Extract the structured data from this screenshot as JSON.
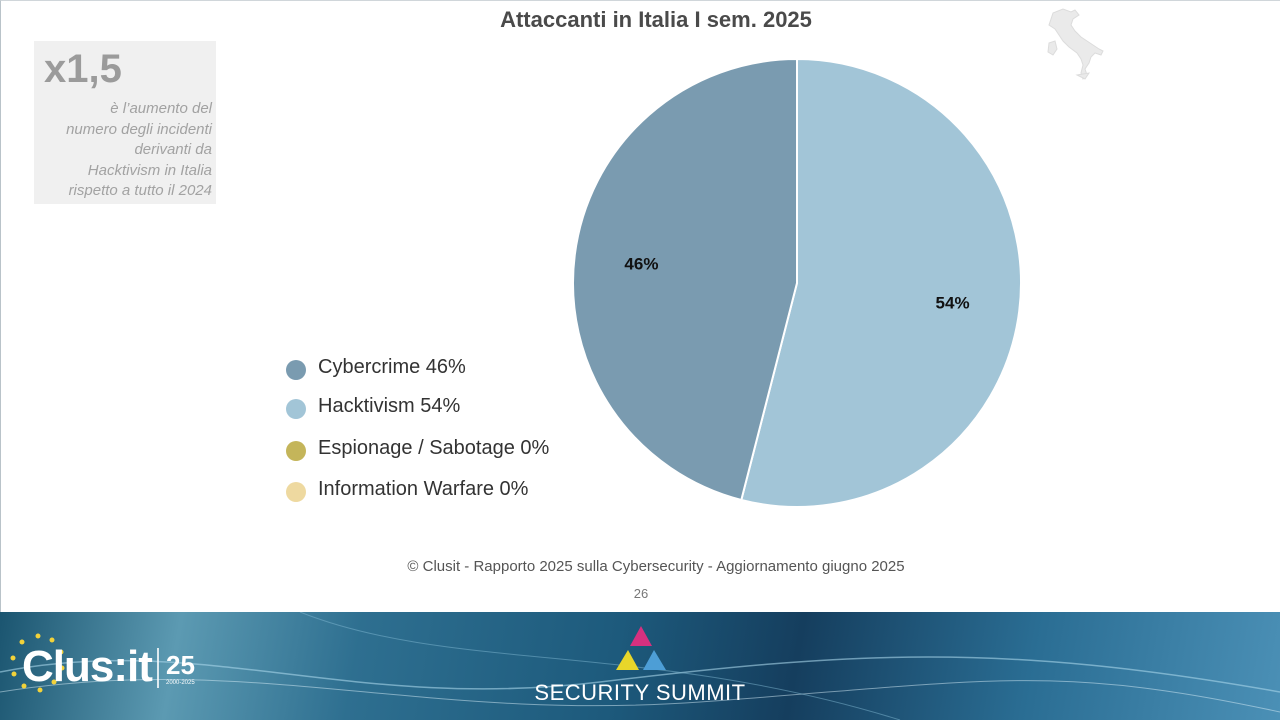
{
  "stat": {
    "big": "x1,5",
    "lines": [
      "è l’aumento del",
      "numero degli incidenti",
      "derivanti da",
      "Hacktivism in Italia",
      "rispetto a tutto il 2024"
    ]
  },
  "legend": [
    {
      "label": "Cybercrime 46%",
      "color": "#7a9bb0"
    },
    {
      "label": "Hacktivism 54%",
      "color": "#a2c5d7"
    },
    {
      "label": "Espionage / Sabotage 0%",
      "color": "#c4b55a"
    },
    {
      "label": "Information Warfare 0%",
      "color": "#eed9a0"
    }
  ],
  "chart_data": {
    "type": "pie",
    "title": "Attaccanti in Italia I sem. 2025",
    "slices": [
      {
        "name": "Hacktivism",
        "value": 54,
        "label": "54%",
        "color": "#a2c5d7"
      },
      {
        "name": "Cybercrime",
        "value": 46,
        "label": "46%",
        "color": "#7a9bb0"
      },
      {
        "name": "Espionage / Sabotage",
        "value": 0,
        "label": "",
        "color": "#c4b55a"
      },
      {
        "name": "Information Warfare",
        "value": 0,
        "label": "",
        "color": "#eed9a0"
      }
    ],
    "start": "12 o'clock, clockwise"
  },
  "source": "© Clusit - Rapporto 2025 sulla Cybersecurity - Aggiornamento giugno 2025",
  "page_number": "26",
  "footer": {
    "clusit_logo": "Clus:it",
    "clusit_25": "25",
    "clusit_years": "2000-2025",
    "summit_text": "SECURITY SUMMIT",
    "colors": {
      "triangle_top": "#d6307f",
      "triangle_left": "#e8d62a",
      "triangle_right": "#4d9ed6"
    }
  }
}
